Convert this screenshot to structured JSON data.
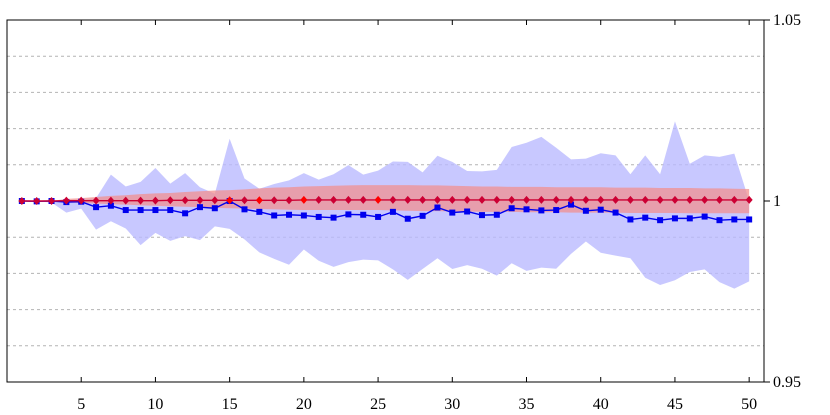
{
  "chart_data": {
    "type": "line",
    "title": "",
    "xlabel": "",
    "ylabel": "",
    "xlim": [
      0,
      51
    ],
    "ylim": [
      0.95,
      1.05
    ],
    "x_ticks": [
      5,
      10,
      15,
      20,
      25,
      30,
      35,
      40,
      45,
      50
    ],
    "y_ticks": [
      0.95,
      1,
      1.05
    ],
    "y_tick_labels": [
      "0.95",
      "1",
      "1.05"
    ],
    "y_axis_side": "right",
    "grid": "horizontal-dashed",
    "grid_values": [
      0.96,
      0.97,
      0.98,
      0.99,
      1.01,
      1.02,
      1.03,
      1.04
    ],
    "x": [
      1,
      2,
      3,
      4,
      5,
      6,
      7,
      8,
      9,
      10,
      11,
      12,
      13,
      14,
      15,
      16,
      17,
      18,
      19,
      20,
      21,
      22,
      23,
      24,
      25,
      26,
      27,
      28,
      29,
      30,
      31,
      32,
      33,
      34,
      35,
      36,
      37,
      38,
      39,
      40,
      41,
      42,
      43,
      44,
      45,
      46,
      47,
      48,
      49,
      50
    ],
    "series": [
      {
        "name": "blue",
        "color": "#0000ee",
        "marker": "square",
        "band_color": "#b8b8ff",
        "values": [
          1.0,
          0.9999,
          1.0,
          0.9997,
          0.9998,
          0.9983,
          0.9987,
          0.9975,
          0.9975,
          0.9975,
          0.9975,
          0.9966,
          0.9983,
          0.998,
          1.0,
          0.9977,
          0.997,
          0.996,
          0.9962,
          0.996,
          0.9956,
          0.9954,
          0.9963,
          0.9962,
          0.9956,
          0.997,
          0.9951,
          0.9959,
          0.9982,
          0.9968,
          0.9971,
          0.9961,
          0.9962,
          0.998,
          0.9977,
          0.9974,
          0.9975,
          0.999,
          0.9973,
          0.9976,
          0.9968,
          0.9949,
          0.9954,
          0.9947,
          0.9952,
          0.9952,
          0.9957,
          0.9947,
          0.9949,
          0.9949
        ],
        "upper": [
          1.0,
          1.0,
          1.0,
          1.0,
          1.0002,
          1.0008,
          1.0073,
          1.004,
          1.0053,
          1.0091,
          1.0048,
          1.0077,
          1.0038,
          1.002,
          1.0172,
          1.0062,
          1.0034,
          1.0047,
          1.0057,
          1.0077,
          1.0059,
          1.0074,
          1.0099,
          1.0073,
          1.0084,
          1.0109,
          1.0108,
          1.0079,
          1.0125,
          1.0108,
          1.0083,
          1.0082,
          1.0086,
          1.0149,
          1.0161,
          1.0177,
          1.0147,
          1.0115,
          1.0117,
          1.0132,
          1.0126,
          1.0074,
          1.0126,
          1.0074,
          1.022,
          1.0103,
          1.0126,
          1.0122,
          1.0131,
          1.0
        ],
        "lower": [
          1.0,
          0.9999,
          0.9996,
          0.9968,
          0.9979,
          0.9921,
          0.9944,
          0.9924,
          0.9878,
          0.9912,
          0.989,
          0.9903,
          0.9892,
          0.993,
          0.9923,
          0.9894,
          0.9858,
          0.984,
          0.9824,
          0.9866,
          0.9835,
          0.9818,
          0.9831,
          0.9838,
          0.9836,
          0.9811,
          0.9782,
          0.9812,
          0.9842,
          0.9812,
          0.9823,
          0.9813,
          0.9794,
          0.9828,
          0.9807,
          0.9816,
          0.9813,
          0.9854,
          0.9888,
          0.9857,
          0.9849,
          0.9842,
          0.9788,
          0.9768,
          0.9781,
          0.9804,
          0.9811,
          0.9776,
          0.9758,
          0.9778
        ]
      },
      {
        "name": "red",
        "color": "#cc0033",
        "marker": "diamond",
        "band_color": "#f29090",
        "values": [
          1.0,
          1.0,
          1.0,
          1.0001,
          1.0001,
          1.0001,
          1.0001,
          1.0001,
          1.0001,
          1.0001,
          1.0002,
          1.0002,
          1.0002,
          1.0002,
          1.0002,
          1.0002,
          1.0002,
          1.0002,
          1.0002,
          1.0003,
          1.0003,
          1.0003,
          1.0003,
          1.0003,
          1.0003,
          1.0003,
          1.0003,
          1.0003,
          1.0003,
          1.0003,
          1.0003,
          1.0003,
          1.0003,
          1.0003,
          1.0003,
          1.0003,
          1.0003,
          1.0003,
          1.0003,
          1.0003,
          1.0003,
          1.0003,
          1.0003,
          1.0003,
          1.0003,
          1.0003,
          1.0003,
          1.0003,
          1.0003,
          1.0003
        ],
        "upper": [
          1.0,
          1.0,
          1.0,
          1.0006,
          1.0008,
          1.0011,
          1.0014,
          1.0016,
          1.0019,
          1.0021,
          1.0022,
          1.0025,
          1.0027,
          1.0029,
          1.003,
          1.0032,
          1.0035,
          1.0037,
          1.0038,
          1.004,
          1.0041,
          1.0042,
          1.0043,
          1.0044,
          1.0044,
          1.0044,
          1.0044,
          1.0043,
          1.0043,
          1.0042,
          1.0041,
          1.004,
          1.004,
          1.0039,
          1.0039,
          1.0039,
          1.0038,
          1.0038,
          1.0038,
          1.0038,
          1.0037,
          1.0037,
          1.0037,
          1.0036,
          1.0036,
          1.0036,
          1.0035,
          1.0035,
          1.0034,
          1.0033
        ],
        "lower": [
          1.0,
          1.0,
          0.9999,
          0.9996,
          0.9994,
          0.9993,
          0.9991,
          0.999,
          0.9988,
          0.9987,
          0.9985,
          0.9984,
          0.9983,
          0.9981,
          0.998,
          0.9979,
          0.9978,
          0.9977,
          0.9976,
          0.9975,
          0.9975,
          0.9975,
          0.9975,
          0.9975,
          0.9975,
          0.9974,
          0.9973,
          0.9972,
          0.9972,
          0.9971,
          0.9971,
          0.997,
          0.997,
          0.997,
          0.9969,
          0.9969,
          0.9969,
          0.9968,
          0.9968,
          0.9968,
          0.9968,
          0.9967,
          0.9967,
          0.9967,
          0.9967,
          0.9966,
          0.9966,
          0.9966,
          0.9966,
          0.9966
        ]
      }
    ],
    "highlighted_markers": [
      {
        "series": "red",
        "x": 15,
        "color": "#ff0000"
      },
      {
        "series": "red",
        "x": 17,
        "color": "#ff0000"
      },
      {
        "series": "red",
        "x": 20,
        "color": "#ff0000"
      },
      {
        "series": "red",
        "x": 25,
        "color": "#ff0000"
      }
    ]
  }
}
